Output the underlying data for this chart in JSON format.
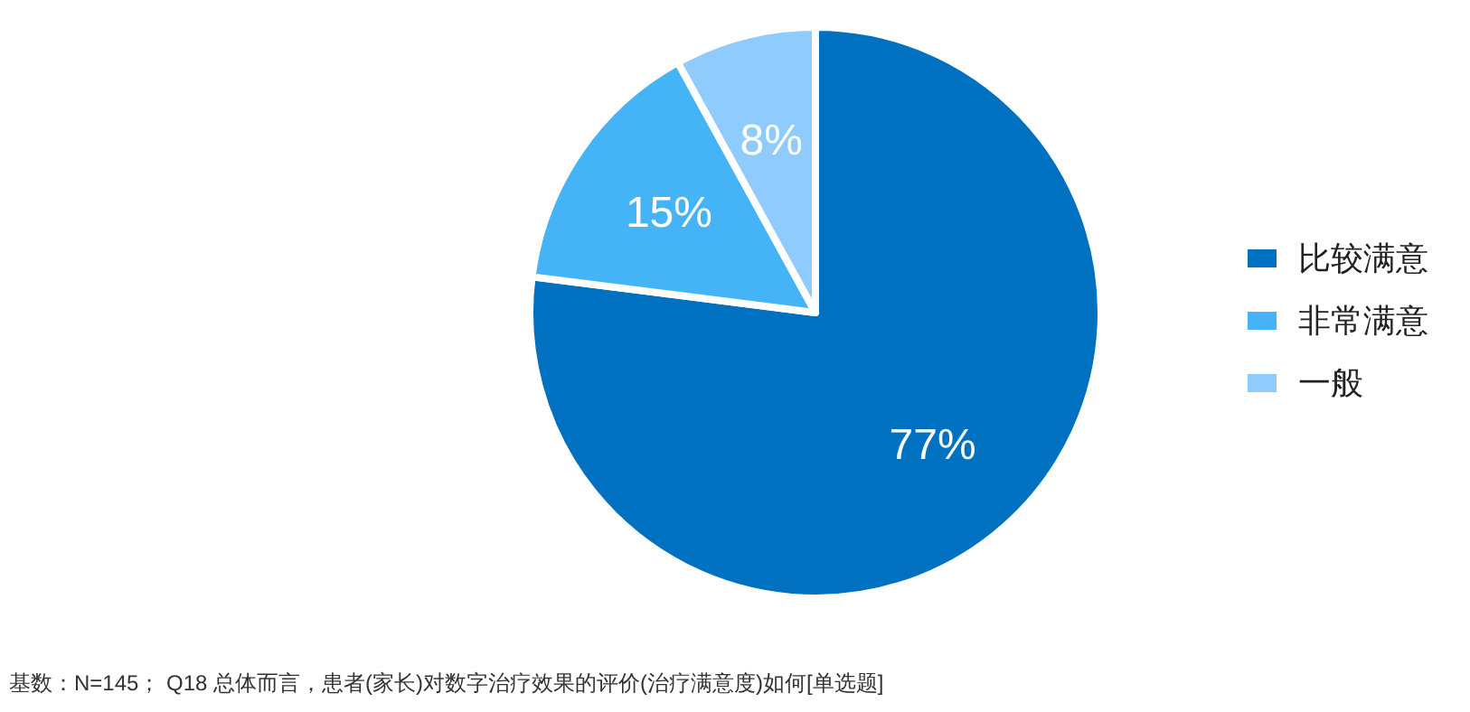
{
  "chart_data": {
    "type": "pie",
    "categories": [
      "比较满意",
      "非常满意",
      "一般"
    ],
    "values": [
      77,
      15,
      8
    ],
    "colors": [
      "#0070c0",
      "#45b4f7",
      "#8fcbfc"
    ],
    "value_labels": [
      "77%",
      "15%",
      "8%"
    ],
    "legend": "right",
    "annotations": [
      "基数：N=145；   Q18 总体而言，患者(家长)对数字治疗效果的评价(治疗满意度)如何[单选题]"
    ]
  }
}
